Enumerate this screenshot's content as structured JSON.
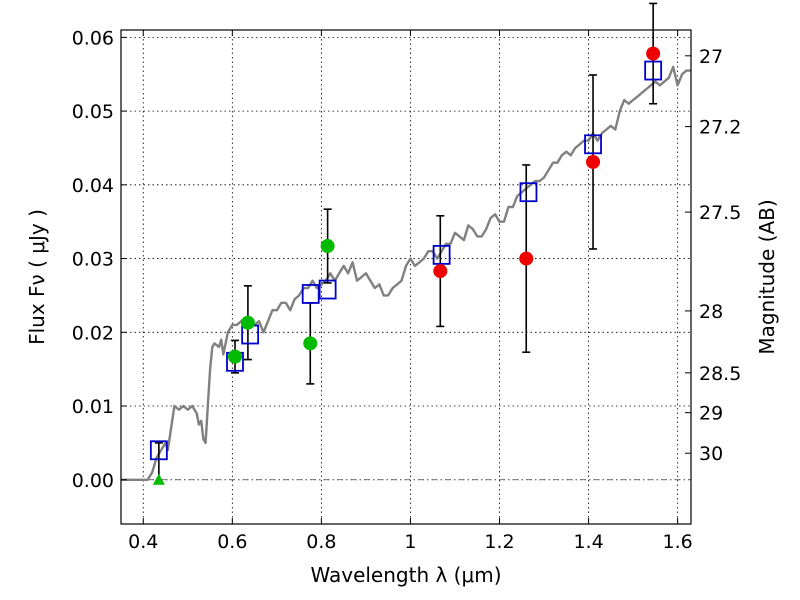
{
  "chart_data": {
    "type": "scatter",
    "xlabel": "Wavelength  λ (μm)",
    "ylabel": "Flux  Fν  ( μJy )",
    "ylabel_right": "Magnitude (AB)",
    "xlim": [
      0.35,
      1.63
    ],
    "ylim": [
      -0.006,
      0.061
    ],
    "grid": true,
    "x_ticks": [
      0.4,
      0.6,
      0.8,
      1.0,
      1.2,
      1.4,
      1.6
    ],
    "x_tick_labels": [
      "0.4",
      "0.6",
      "0.8",
      "1",
      "1.2",
      "1.4",
      "1.6"
    ],
    "y_ticks": [
      0.0,
      0.01,
      0.02,
      0.03,
      0.04,
      0.05,
      0.06
    ],
    "y_tick_labels": [
      "0.00",
      "0.01",
      "0.02",
      "0.03",
      "0.04",
      "0.05",
      "0.06"
    ],
    "mag_ticks": [
      {
        "label": "27",
        "flux": 0.0575
      },
      {
        "label": "27.2",
        "flux": 0.0479
      },
      {
        "label": "27.5",
        "flux": 0.0363
      },
      {
        "label": "28",
        "flux": 0.0229
      },
      {
        "label": "28.5",
        "flux": 0.0145
      },
      {
        "label": "29",
        "flux": 0.0091
      },
      {
        "label": "30",
        "flux": 0.0036
      }
    ],
    "colors": {
      "sed": "#808080",
      "model": "#0000cc",
      "green": "#00bb00",
      "red": "#ee0000",
      "errorbar": "#000000"
    },
    "series": [
      {
        "kind": "sed_line",
        "points": [
          [
            0.35,
            0.0
          ],
          [
            0.4,
            0.0
          ],
          [
            0.41,
            0.0
          ],
          [
            0.42,
            0.001
          ],
          [
            0.43,
            0.003
          ],
          [
            0.44,
            0.004
          ],
          [
            0.45,
            0.005
          ],
          [
            0.455,
            0.004
          ],
          [
            0.46,
            0.006
          ],
          [
            0.47,
            0.01
          ],
          [
            0.48,
            0.0095
          ],
          [
            0.49,
            0.01
          ],
          [
            0.5,
            0.0095
          ],
          [
            0.51,
            0.01
          ],
          [
            0.52,
            0.009
          ],
          [
            0.525,
            0.0075
          ],
          [
            0.53,
            0.008
          ],
          [
            0.535,
            0.0055
          ],
          [
            0.54,
            0.005
          ],
          [
            0.545,
            0.01
          ],
          [
            0.55,
            0.015
          ],
          [
            0.555,
            0.018
          ],
          [
            0.56,
            0.0185
          ],
          [
            0.57,
            0.018
          ],
          [
            0.575,
            0.019
          ],
          [
            0.58,
            0.017
          ],
          [
            0.585,
            0.0185
          ],
          [
            0.59,
            0.02
          ],
          [
            0.6,
            0.021
          ],
          [
            0.61,
            0.021
          ],
          [
            0.62,
            0.0215
          ],
          [
            0.63,
            0.022
          ],
          [
            0.64,
            0.021
          ],
          [
            0.65,
            0.021
          ],
          [
            0.66,
            0.0215
          ],
          [
            0.67,
            0.02
          ],
          [
            0.68,
            0.0215
          ],
          [
            0.69,
            0.023
          ],
          [
            0.7,
            0.023
          ],
          [
            0.71,
            0.024
          ],
          [
            0.72,
            0.024
          ],
          [
            0.73,
            0.023
          ],
          [
            0.74,
            0.0245
          ],
          [
            0.75,
            0.025
          ],
          [
            0.76,
            0.026
          ],
          [
            0.77,
            0.026
          ],
          [
            0.78,
            0.027
          ],
          [
            0.79,
            0.026
          ],
          [
            0.8,
            0.0265
          ],
          [
            0.81,
            0.027
          ],
          [
            0.82,
            0.028
          ],
          [
            0.83,
            0.027
          ],
          [
            0.84,
            0.028
          ],
          [
            0.85,
            0.029
          ],
          [
            0.86,
            0.028
          ],
          [
            0.87,
            0.0295
          ],
          [
            0.88,
            0.027
          ],
          [
            0.89,
            0.0275
          ],
          [
            0.9,
            0.028
          ],
          [
            0.91,
            0.027
          ],
          [
            0.92,
            0.026
          ],
          [
            0.93,
            0.0265
          ],
          [
            0.94,
            0.025
          ],
          [
            0.95,
            0.025
          ],
          [
            0.96,
            0.026
          ],
          [
            0.97,
            0.0265
          ],
          [
            0.98,
            0.027
          ],
          [
            0.99,
            0.029
          ],
          [
            1.0,
            0.03
          ],
          [
            1.01,
            0.029
          ],
          [
            1.02,
            0.0295
          ],
          [
            1.03,
            0.03
          ],
          [
            1.04,
            0.031
          ],
          [
            1.05,
            0.031
          ],
          [
            1.06,
            0.03
          ],
          [
            1.07,
            0.031
          ],
          [
            1.08,
            0.032
          ],
          [
            1.09,
            0.032
          ],
          [
            1.1,
            0.0335
          ],
          [
            1.11,
            0.033
          ],
          [
            1.12,
            0.0325
          ],
          [
            1.13,
            0.0345
          ],
          [
            1.14,
            0.034
          ],
          [
            1.15,
            0.033
          ],
          [
            1.16,
            0.033
          ],
          [
            1.17,
            0.034
          ],
          [
            1.18,
            0.0355
          ],
          [
            1.19,
            0.036
          ],
          [
            1.2,
            0.035
          ],
          [
            1.21,
            0.035
          ],
          [
            1.22,
            0.037
          ],
          [
            1.23,
            0.037
          ],
          [
            1.24,
            0.0385
          ],
          [
            1.25,
            0.039
          ],
          [
            1.26,
            0.0395
          ],
          [
            1.27,
            0.04
          ],
          [
            1.28,
            0.0405
          ],
          [
            1.29,
            0.0405
          ],
          [
            1.3,
            0.041
          ],
          [
            1.31,
            0.042
          ],
          [
            1.32,
            0.043
          ],
          [
            1.33,
            0.043
          ],
          [
            1.34,
            0.044
          ],
          [
            1.35,
            0.0445
          ],
          [
            1.36,
            0.044
          ],
          [
            1.37,
            0.045
          ],
          [
            1.38,
            0.0455
          ],
          [
            1.39,
            0.046
          ],
          [
            1.4,
            0.046
          ],
          [
            1.41,
            0.047
          ],
          [
            1.42,
            0.046
          ],
          [
            1.43,
            0.047
          ],
          [
            1.44,
            0.0475
          ],
          [
            1.45,
            0.048
          ],
          [
            1.46,
            0.0475
          ],
          [
            1.47,
            0.05
          ],
          [
            1.48,
            0.0515
          ],
          [
            1.49,
            0.051
          ],
          [
            1.5,
            0.0515
          ],
          [
            1.51,
            0.052
          ],
          [
            1.52,
            0.0525
          ],
          [
            1.53,
            0.053
          ],
          [
            1.54,
            0.0535
          ],
          [
            1.55,
            0.054
          ],
          [
            1.56,
            0.0535
          ],
          [
            1.57,
            0.054
          ],
          [
            1.58,
            0.0545
          ],
          [
            1.59,
            0.056
          ],
          [
            1.6,
            0.0535
          ],
          [
            1.61,
            0.055
          ],
          [
            1.62,
            0.0555
          ],
          [
            1.63,
            0.0555
          ]
        ]
      },
      {
        "kind": "model_squares",
        "points": [
          [
            0.435,
            0.004
          ],
          [
            0.606,
            0.016
          ],
          [
            0.64,
            0.0197
          ],
          [
            0.776,
            0.0252
          ],
          [
            0.814,
            0.0258
          ],
          [
            1.07,
            0.0305
          ],
          [
            1.265,
            0.039
          ],
          [
            1.41,
            0.0455
          ],
          [
            1.545,
            0.0555
          ]
        ]
      },
      {
        "kind": "green_points",
        "points": [
          {
            "x": 0.606,
            "y": 0.0167,
            "err": 0.0022
          },
          {
            "x": 0.635,
            "y": 0.0213,
            "err": 0.005
          },
          {
            "x": 0.775,
            "y": 0.0185,
            "err": 0.0055
          },
          {
            "x": 0.814,
            "y": 0.0317,
            "err": 0.005
          }
        ]
      },
      {
        "kind": "green_upper_limit",
        "points": [
          {
            "x": 0.435,
            "y": 0.0,
            "err_up": 0.005
          }
        ]
      },
      {
        "kind": "red_points",
        "points": [
          {
            "x": 1.067,
            "y": 0.0283,
            "err": 0.0075
          },
          {
            "x": 1.26,
            "y": 0.03,
            "err": 0.0127
          },
          {
            "x": 1.41,
            "y": 0.0431,
            "err": 0.0118
          },
          {
            "x": 1.545,
            "y": 0.0578,
            "err": 0.0068
          }
        ]
      }
    ]
  }
}
